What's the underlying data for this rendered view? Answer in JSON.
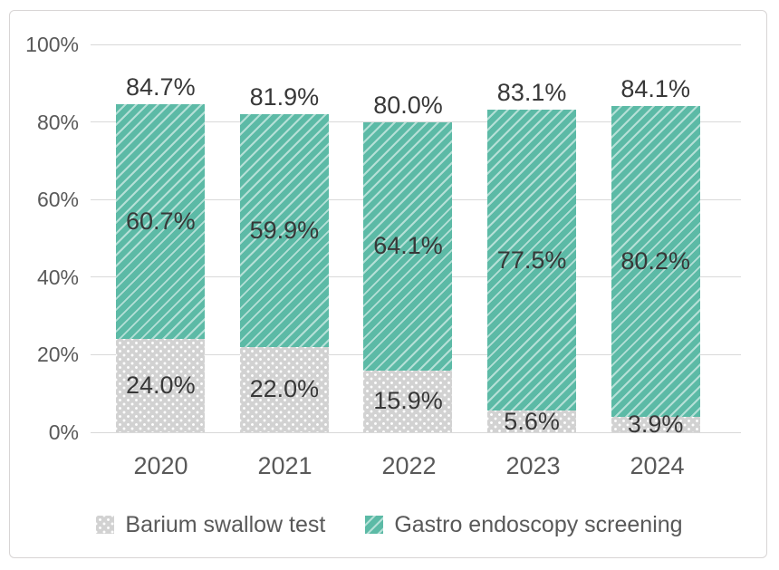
{
  "chart_data": {
    "type": "bar",
    "stacked": true,
    "categories": [
      "2020",
      "2021",
      "2022",
      "2023",
      "2024"
    ],
    "series": [
      {
        "name": "Barium swallow test",
        "values": [
          24.0,
          22.0,
          15.9,
          5.6,
          3.9
        ],
        "labels": [
          "24.0%",
          "22.0%",
          "15.9%",
          "5.6%",
          "3.9%"
        ],
        "color": "#d2d2d2",
        "pattern": "dots"
      },
      {
        "name": "Gastro endoscopy screening",
        "values": [
          60.7,
          59.9,
          64.1,
          77.5,
          80.2
        ],
        "labels": [
          "60.7%",
          "59.9%",
          "64.1%",
          "77.5%",
          "80.2%"
        ],
        "color": "#5cbaa6",
        "pattern": "diagonal-hatch"
      }
    ],
    "totals": {
      "values": [
        84.7,
        81.9,
        80.0,
        83.1,
        84.1
      ],
      "labels": [
        "84.7%",
        "81.9%",
        "80.0%",
        "83.1%",
        "84.1%"
      ]
    },
    "y_axis": {
      "ticks": [
        "100%",
        "80%",
        "60%",
        "40%",
        "20%",
        "0%"
      ],
      "min": 0,
      "max": 100,
      "grid": true
    },
    "legend": {
      "position": "bottom",
      "entries": [
        "Barium swallow test",
        "Gastro endoscopy screening"
      ]
    },
    "colors": {
      "bar_teal": "#5cbaa6",
      "bar_gray": "#d2d2d2",
      "data_label_text": "#383838",
      "axis_text": "#595959",
      "gridline": "#d9d9d9",
      "frame_border": "#d8d5d5"
    }
  }
}
